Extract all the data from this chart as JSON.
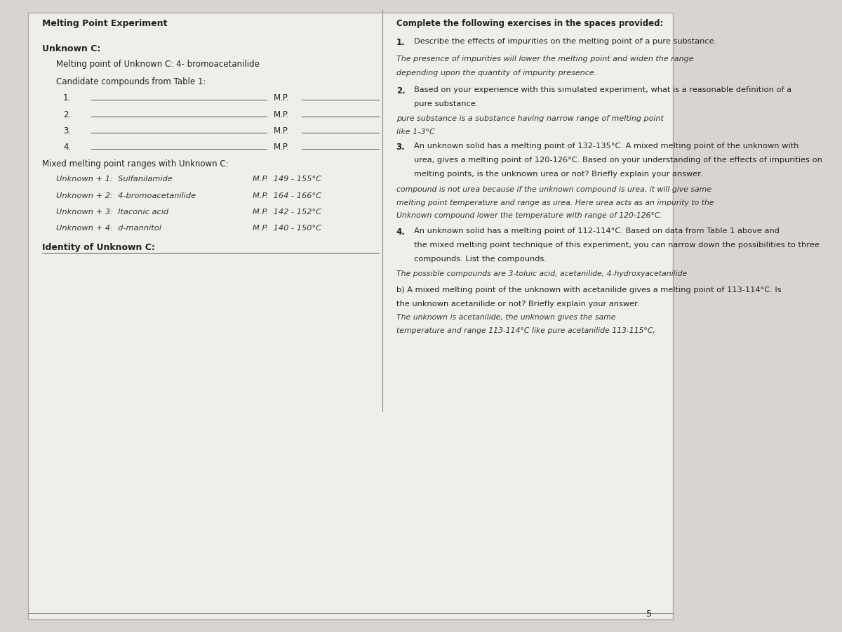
{
  "bg_color": "#d8d5d0",
  "paper_color": "#f0eeeb",
  "title": "Melting Point Experiment",
  "section_header": "Unknown C:",
  "mp_line": "Melting point of Unknown C: 4- bromoacetanilide",
  "candidate_line": "Candidate compounds from Table 1:",
  "candidates": [
    "1.",
    "2.",
    "3.",
    "4."
  ],
  "mp_labels_left": [
    "M.P.",
    "M.P.",
    "M.P.",
    "M.P."
  ],
  "mixed_header": "Mixed melting point ranges with Unknown C:",
  "mixed_entries": [
    "Unknown + 1:  Sulfanilamide",
    "Unknown + 2:  4-bromoacetanilide",
    "Unknown + 3:  Itaconic acid",
    "Unknown + 4:  d-mannitol"
  ],
  "mp_values_mixed": [
    "M.P.  149 - 155°C",
    "M.P.  164 - 166°C",
    "M.P.  142 - 152°C",
    "M.P.  140 - 150°C"
  ],
  "identity_label": "Identity of Unknown C:",
  "complete_header": "Complete the following exercises in the spaces provided:",
  "q1_label": "1.",
  "q1_text": "Describe the effects of impurities on the melting point of a pure substance.",
  "q1_answer_line1": "The presence of impurities will lower the melting point and widen the range",
  "q1_answer_line2": "depending upon the quantity of impurity presence.",
  "q2_label": "2.",
  "q2_text": "Based on your experience with this simulated experiment, what is a reasonable definition of a",
  "q2_text2": "pure substance.",
  "q2_answer": "pure substance is a substance having narrow range of melting point",
  "q2_answer2": "like 1-3°C",
  "q3_label": "3.",
  "q3_text": "An unknown solid has a melting point of 132-135°C. A mixed melting point of the unknown with",
  "q3_text2": "urea, gives a melting point of 120-126°C. Based on your understanding of the effects of impurities on",
  "q3_text3": "melting points, is the unknown urea or not? Briefly explain your answer.",
  "q3_answer1": "compound is not urea because if the unknown compound is urea, it will give same",
  "q3_answer2": "melting point temperature and range as urea. Here urea acts as an impurity to the",
  "q3_answer3": "Unknown compound lower the temperature with range of 120-126°C.",
  "q4_label": "4.",
  "q4_text": "An unknown solid has a melting point of 112-114°C. Based on data from Table 1 above and",
  "q4_text2": "the mixed melting point technique of this experiment, you can narrow down the possibilities to three",
  "q4_text3": "compounds. List the compounds.",
  "q4_answer": "The possible compounds are 3-toluic acid, acetanilide, 4-hydroxyacetanilide",
  "q4b_text": "b) A mixed melting point of the unknown with acetanilide gives a melting point of 113-114°C. Is",
  "q4b_text2": "the unknown acetanilide or not? Briefly explain your answer.",
  "q4b_answer1": "The unknown is acetanilide, the unknown gives the same",
  "q4b_answer2": "temperature and range 113-114°C like pure acetanilide 113-115°C,",
  "page_num": "5"
}
